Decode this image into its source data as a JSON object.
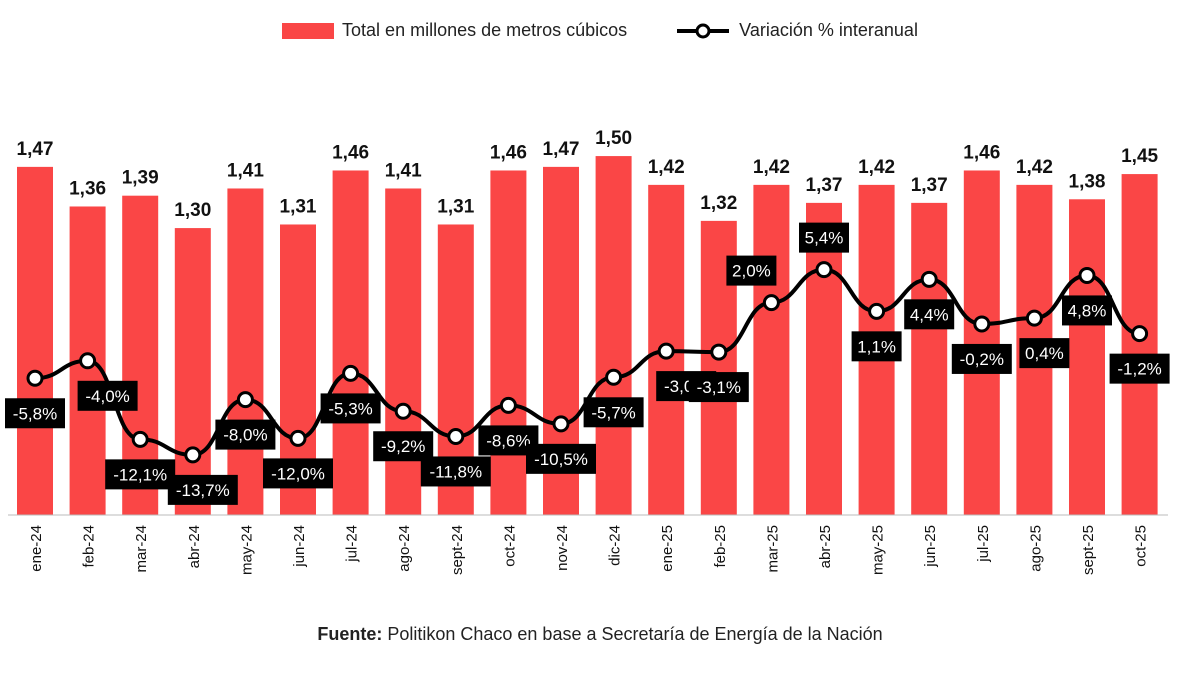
{
  "chart_data": {
    "type": "bar",
    "categories": [
      "ene-24",
      "feb-24",
      "mar-24",
      "abr-24",
      "may-24",
      "jun-24",
      "jul-24",
      "ago-24",
      "sept-24",
      "oct-24",
      "nov-24",
      "dic-24",
      "ene-25",
      "feb-25",
      "mar-25",
      "abr-25",
      "may-25",
      "jun-25",
      "jul-25",
      "ago-25",
      "sept-25",
      "oct-25"
    ],
    "series": [
      {
        "name": "Total en millones de metros cúbicos",
        "type": "bar",
        "color": "#fa4646",
        "values": [
          1.47,
          1.36,
          1.39,
          1.3,
          1.41,
          1.31,
          1.46,
          1.41,
          1.31,
          1.46,
          1.47,
          1.5,
          1.42,
          1.32,
          1.42,
          1.37,
          1.42,
          1.37,
          1.46,
          1.42,
          1.38,
          1.45
        ],
        "labels": [
          "1,47",
          "1,36",
          "1,39",
          "1,30",
          "1,41",
          "1,31",
          "1,46",
          "1,41",
          "1,31",
          "1,46",
          "1,47",
          "1,50",
          "1,42",
          "1,32",
          "1,42",
          "1,37",
          "1,42",
          "1,37",
          "1,46",
          "1,42",
          "1,38",
          "1,45"
        ]
      },
      {
        "name": "Variación % interanual",
        "type": "line",
        "color": "#000000",
        "values": [
          -5.8,
          -4.0,
          -12.1,
          -13.7,
          -8.0,
          -12.0,
          -5.3,
          -9.2,
          -11.8,
          -8.6,
          -10.5,
          -5.7,
          -3.0,
          -3.1,
          2.0,
          5.4,
          1.1,
          4.4,
          -0.2,
          0.4,
          4.8,
          -1.2
        ],
        "labels": [
          "-5,8%",
          "-4,0%",
          "-12,1%",
          "-13,7%",
          "-8,0%",
          "-12,0%",
          "-5,3%",
          "-9,2%",
          "-11,8%",
          "-8,6%",
          "-10,5%",
          "-5,7%",
          "-3,0%",
          "-3,1%",
          "2,0%",
          "5,4%",
          "1,1%",
          "4,4%",
          "-0,2%",
          "0,4%",
          "4,8%",
          "-1,2%"
        ]
      }
    ],
    "xlabel": "",
    "ylabel": "",
    "legend_position": "top",
    "grid": false
  },
  "source": {
    "label": "Fuente:",
    "text": " Politikon Chaco en base a Secretaría de Energía de la Nación"
  }
}
